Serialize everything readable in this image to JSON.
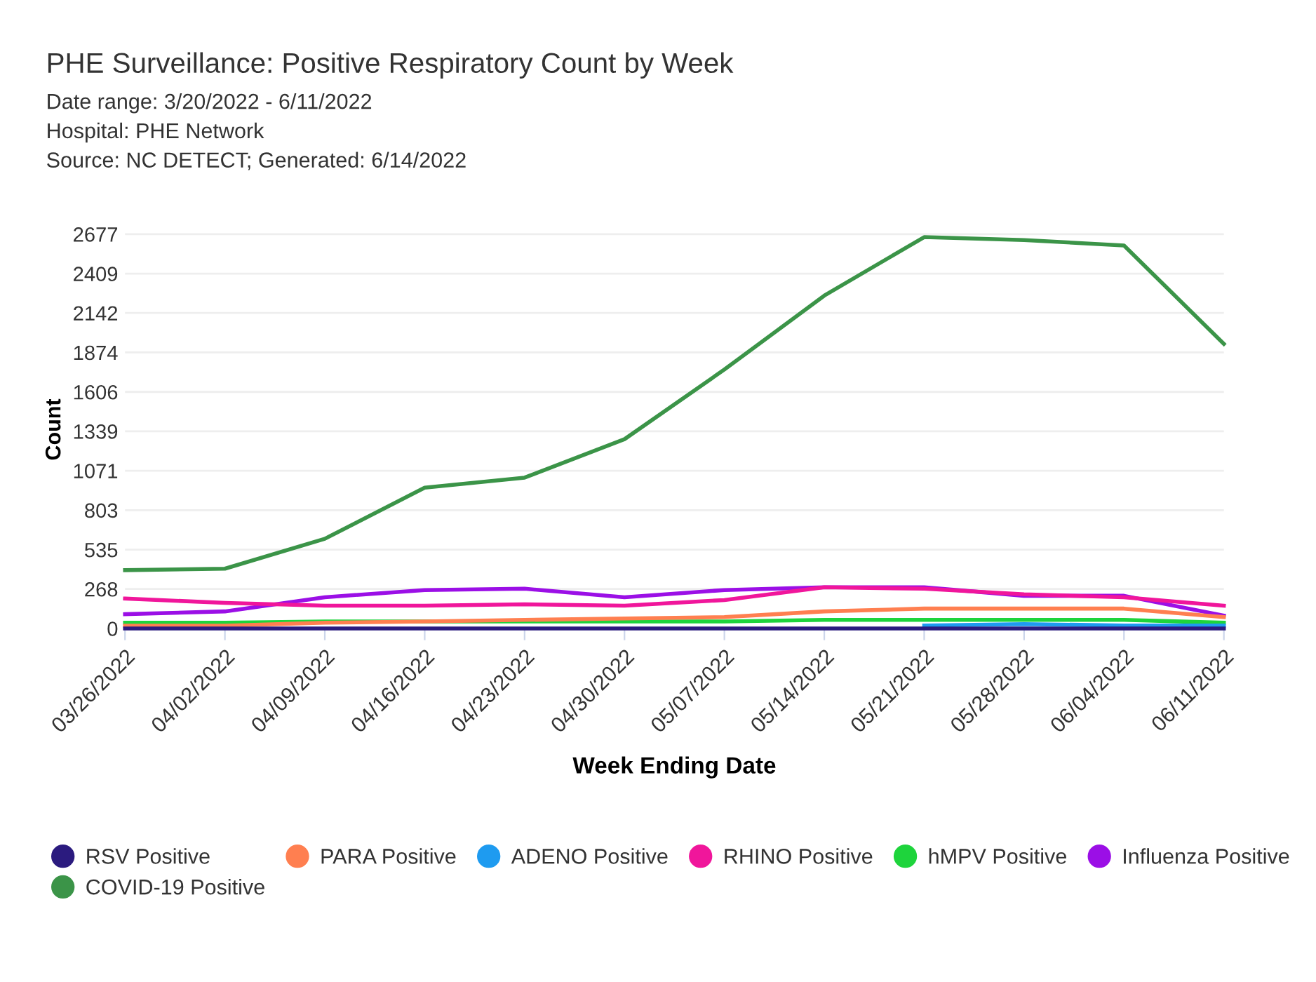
{
  "chart_data": {
    "type": "line",
    "title": "PHE Surveillance: Positive Respiratory Count by Week",
    "subtitle": "Date range: 3/20/2022 - 6/11/2022\nHospital: PHE Network\nSource: NC DETECT; Generated: 6/14/2022",
    "xlabel": "Week Ending Date",
    "ylabel": "Count",
    "categories": [
      "03/26/2022",
      "04/02/2022",
      "04/09/2022",
      "04/16/2022",
      "04/23/2022",
      "04/30/2022",
      "05/07/2022",
      "05/14/2022",
      "05/21/2022",
      "05/28/2022",
      "06/04/2022",
      "06/11/2022"
    ],
    "series": [
      {
        "name": "RSV Positive",
        "color": "#2b1b7f",
        "values": [
          0,
          0,
          0,
          0,
          0,
          0,
          0,
          0,
          0,
          0,
          0,
          0
        ]
      },
      {
        "name": "PARA Positive",
        "color": "#ff7f50",
        "values": [
          19,
          19,
          39,
          48,
          58,
          68,
          77,
          116,
          135,
          135,
          135,
          77
        ]
      },
      {
        "name": "ADENO Positive",
        "color": "#1e9bf0",
        "values": [
          null,
          null,
          null,
          null,
          null,
          null,
          null,
          null,
          20,
          30,
          20,
          20
        ]
      },
      {
        "name": "RHINO Positive",
        "color": "#f0169b",
        "values": [
          203,
          174,
          155,
          155,
          164,
          155,
          193,
          280,
          270,
          232,
          212,
          155
        ]
      },
      {
        "name": "hMPV Positive",
        "color": "#1ed43c",
        "values": [
          39,
          39,
          48,
          48,
          48,
          48,
          48,
          58,
          58,
          58,
          58,
          39
        ]
      },
      {
        "name": "Influenza Positive",
        "color": "#9b0fe6",
        "values": [
          97,
          116,
          212,
          261,
          270,
          212,
          261,
          280,
          280,
          222,
          222,
          87
        ]
      },
      {
        "name": "COVID-19 Positive",
        "color": "#3b9448",
        "values": [
          396,
          406,
          609,
          956,
          1024,
          1285,
          1758,
          2260,
          2657,
          2637,
          2600,
          1932
        ]
      }
    ],
    "ylim": [
      0,
      2700
    ],
    "yticks": [
      0,
      268,
      535,
      803,
      1071,
      1339,
      1606,
      1874,
      2142,
      2409,
      2677
    ],
    "grid": "y",
    "legend": "bottom",
    "marker": "none",
    "line_style": "solid"
  }
}
